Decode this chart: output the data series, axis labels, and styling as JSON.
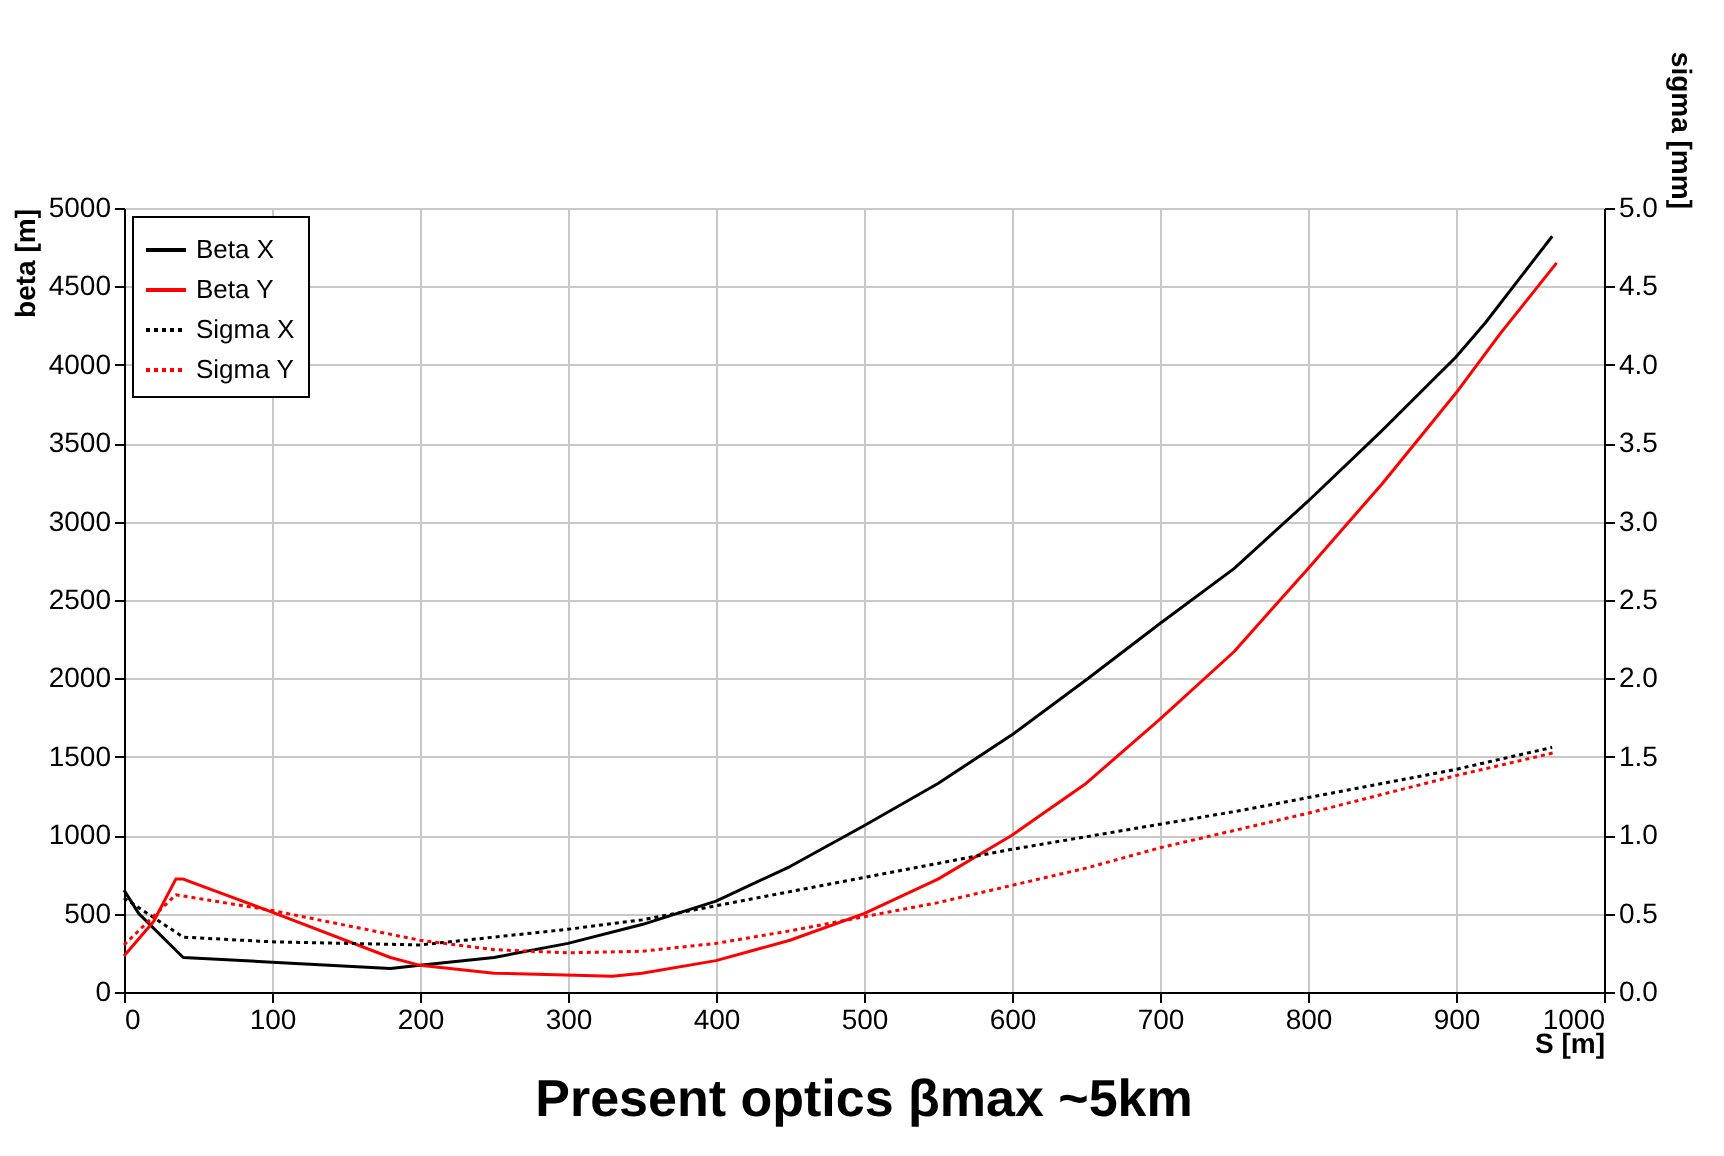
{
  "chart_data": {
    "type": "line",
    "xlabel": "S [m]",
    "ylabel": "beta [m]",
    "y2label": "sigma [mm]",
    "annotations": [
      "Present optics βmax ~5km"
    ],
    "xlim": [
      0,
      1000
    ],
    "xticks": [
      0,
      100,
      200,
      300,
      400,
      500,
      600,
      700,
      800,
      900,
      1000
    ],
    "ylim": [
      0,
      5000
    ],
    "yticks": [
      0,
      500,
      1000,
      1500,
      2000,
      2500,
      3000,
      3500,
      4000,
      4500,
      5000
    ],
    "y2lim": [
      0,
      5
    ],
    "y2ticks": [
      {
        "value": 0,
        "label": "0.0"
      },
      {
        "value": 0.5,
        "label": "0.5"
      },
      {
        "value": 1,
        "label": "1.0"
      },
      {
        "value": 1.5,
        "label": "1.5"
      },
      {
        "value": 2,
        "label": "2.0"
      },
      {
        "value": 2.5,
        "label": "2.5"
      },
      {
        "value": 3,
        "label": "3.0"
      },
      {
        "value": 3.5,
        "label": "3.5"
      },
      {
        "value": 4,
        "label": "4.0"
      },
      {
        "value": 4.5,
        "label": "4.5"
      },
      {
        "value": 5,
        "label": "5.0"
      }
    ],
    "grid": true,
    "legend": "top left",
    "marker": "none",
    "series": [
      {
        "name": "Beta X",
        "color": "#000000",
        "line_style": "solid",
        "x": [
          0,
          10,
          40,
          100,
          180,
          200,
          250,
          300,
          350,
          400,
          450,
          500,
          550,
          600,
          650,
          700,
          750,
          800,
          850,
          900,
          920,
          965
        ],
        "values": [
          650,
          500,
          220,
          190,
          150,
          170,
          220,
          310,
          430,
          580,
          800,
          1060,
          1330,
          1640,
          1990,
          2350,
          2700,
          3130,
          3580,
          4050,
          4270,
          4820
        ]
      },
      {
        "name": "Beta Y",
        "color": "#ff0000",
        "line_style": "solid",
        "x": [
          0,
          20,
          35,
          40,
          100,
          180,
          200,
          250,
          330,
          350,
          400,
          450,
          500,
          550,
          600,
          650,
          700,
          750,
          800,
          850,
          900,
          930,
          968
        ],
        "values": [
          230,
          450,
          720,
          720,
          510,
          220,
          170,
          120,
          100,
          120,
          200,
          330,
          500,
          720,
          1000,
          1330,
          1740,
          2170,
          2700,
          3240,
          3820,
          4200,
          4650
        ]
      },
      {
        "name": "Sigma X",
        "color": "#000000",
        "line_style": "dotted",
        "axis": "y2",
        "x": [
          0,
          40,
          100,
          200,
          250,
          300,
          350,
          400,
          450,
          500,
          550,
          600,
          650,
          700,
          750,
          800,
          850,
          900,
          965
        ],
        "values": [
          0.6,
          0.35,
          0.32,
          0.3,
          0.35,
          0.4,
          0.46,
          0.55,
          0.64,
          0.73,
          0.82,
          0.91,
          0.99,
          1.07,
          1.15,
          1.24,
          1.33,
          1.42,
          1.56
        ]
      },
      {
        "name": "Sigma Y",
        "color": "#ff0000",
        "line_style": "dotted",
        "axis": "y2",
        "x": [
          0,
          35,
          100,
          200,
          250,
          300,
          350,
          400,
          450,
          500,
          550,
          600,
          650,
          700,
          750,
          800,
          850,
          900,
          968
        ],
        "values": [
          0.3,
          0.62,
          0.52,
          0.33,
          0.27,
          0.25,
          0.26,
          0.31,
          0.39,
          0.48,
          0.57,
          0.68,
          0.79,
          0.92,
          1.03,
          1.14,
          1.26,
          1.38,
          1.53
        ]
      }
    ]
  }
}
